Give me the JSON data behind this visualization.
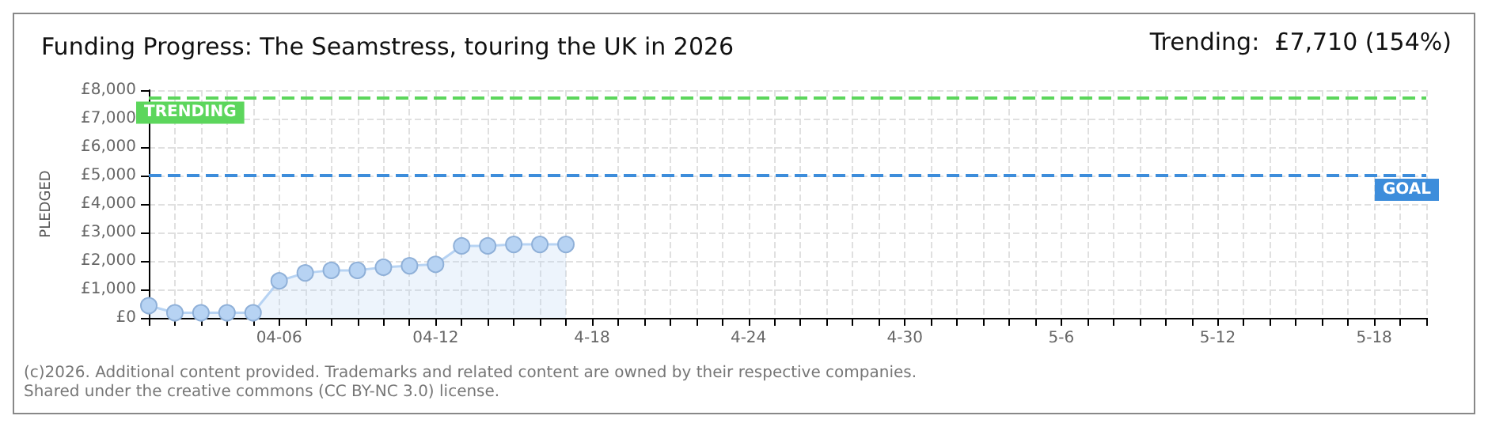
{
  "chart_data": {
    "type": "area",
    "title": "Funding Progress: The Seamstress, touring the UK in 2026",
    "ylabel": "PLEDGED",
    "annotations": [
      "Trending:  £7,710 (154%)",
      "(c)2026. Additional content provided. Trademarks and related content are owned by their respective companies.",
      "Shared under the creative commons (CC BY-NC 3.0) license."
    ],
    "categories": [
      null,
      null,
      null,
      null,
      null,
      "04-06",
      null,
      null,
      null,
      null,
      null,
      "04-12",
      null,
      null,
      null,
      null,
      null,
      "4-18",
      null,
      null,
      null,
      null,
      null,
      "4-24",
      null,
      null,
      null,
      null,
      null,
      "4-30",
      null,
      null,
      null,
      null,
      null,
      "5-6",
      null,
      null,
      null,
      null,
      null,
      "5-12",
      null,
      null,
      null,
      null,
      null,
      "5-18",
      null,
      null
    ],
    "series": [
      {
        "color": "#b7d3f3",
        "values": [
          430,
          180,
          180,
          180,
          180,
          1300,
          1580,
          1670,
          1670,
          1780,
          1830,
          1880,
          2530,
          2530,
          2580,
          2580,
          2580,
          null,
          null,
          null,
          null,
          null,
          null,
          null,
          null,
          null,
          null,
          null,
          null,
          null,
          null,
          null,
          null,
          null,
          null,
          null,
          null,
          null,
          null,
          null,
          null,
          null,
          null,
          null,
          null,
          null,
          null,
          null,
          null,
          null
        ]
      }
    ],
    "ylim": [
      0,
      8000
    ],
    "yticks": [
      {
        "value": 0,
        "label": "£0"
      },
      {
        "value": 1000,
        "label": "£1,000"
      },
      {
        "value": 2000,
        "label": "£2,000"
      },
      {
        "value": 3000,
        "label": "£3,000"
      },
      {
        "value": 4000,
        "label": "£4,000"
      },
      {
        "value": 5000,
        "label": "£5,000"
      },
      {
        "value": 6000,
        "label": "£6,000"
      },
      {
        "value": 7000,
        "label": "£7,000"
      },
      {
        "value": 8000,
        "label": "£8,000"
      }
    ],
    "ref_lines": [
      {
        "axis": "y",
        "value": 7710,
        "label": "TRENDING",
        "color": "#5cd65c",
        "line_style": "dashed"
      },
      {
        "axis": "y",
        "value": 5000,
        "label": "GOAL",
        "color": "#3d8ddb",
        "line_style": "dashed"
      }
    ],
    "grid": true,
    "marker": "circle",
    "line_style": "solid"
  }
}
